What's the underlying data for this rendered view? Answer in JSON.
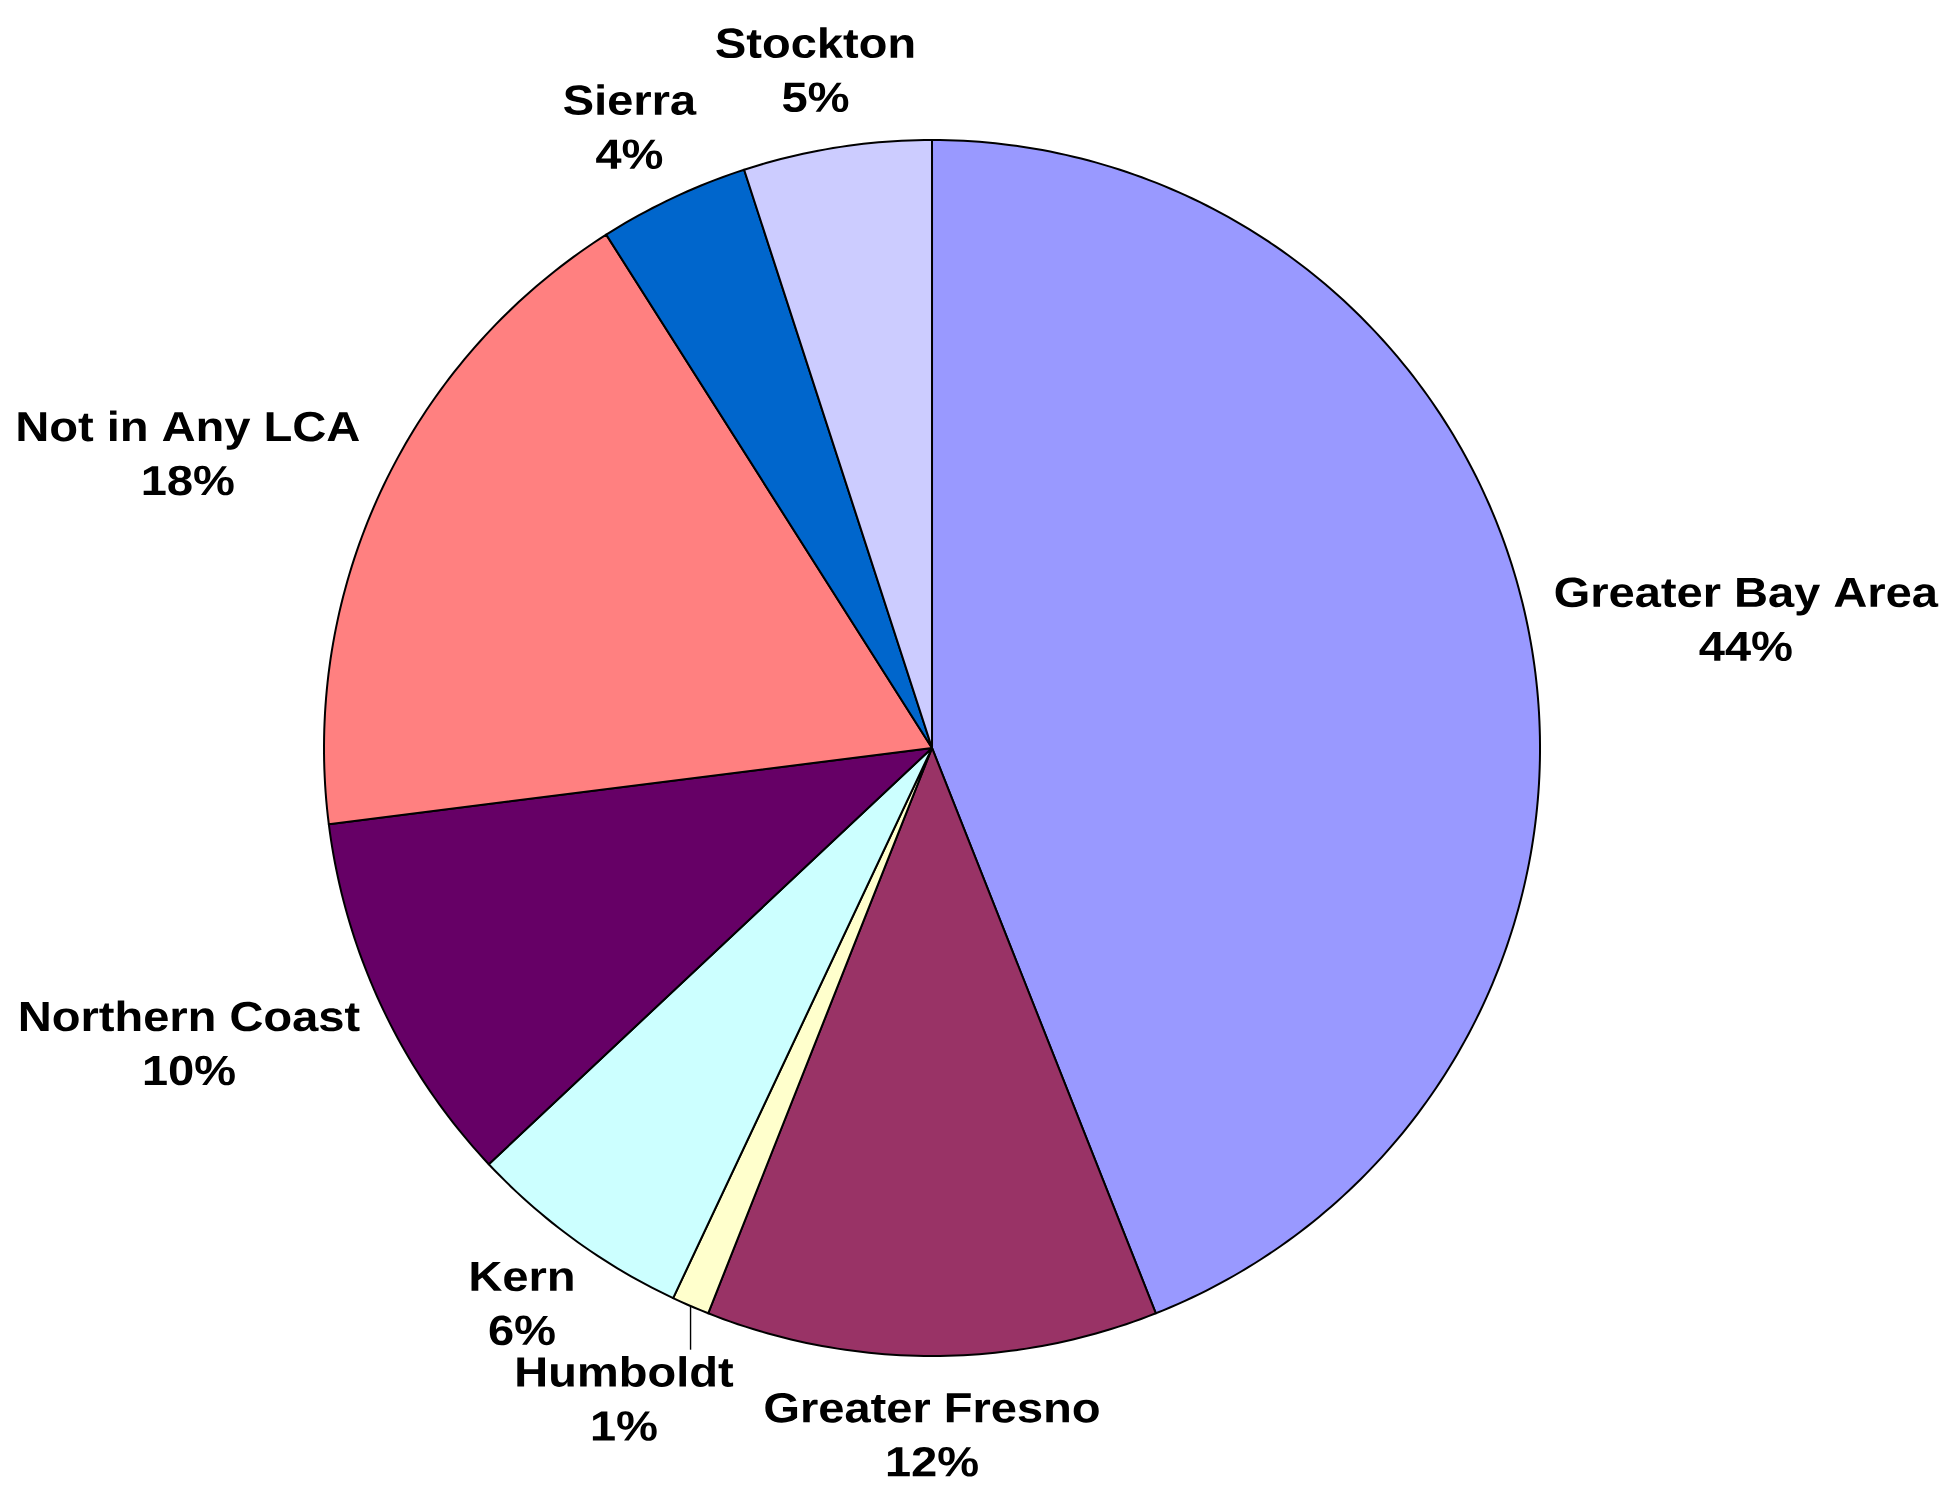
{
  "chart_data": {
    "type": "pie",
    "categories": [
      "Greater Bay Area",
      "Greater Fresno",
      "Humboldt",
      "Kern",
      "Northern Coast",
      "Not in Any LCA",
      "Sierra",
      "Stockton"
    ],
    "values": [
      44,
      12,
      1,
      6,
      10,
      18,
      4,
      5
    ],
    "colors": [
      "#9999ff",
      "#993366",
      "#ffffcc",
      "#ccffff",
      "#660066",
      "#ff8080",
      "#0066cc",
      "#ccccff"
    ],
    "value_labels": [
      "44%",
      "12%",
      "1%",
      "6%",
      "10%",
      "18%",
      "4%",
      "5%"
    ]
  }
}
